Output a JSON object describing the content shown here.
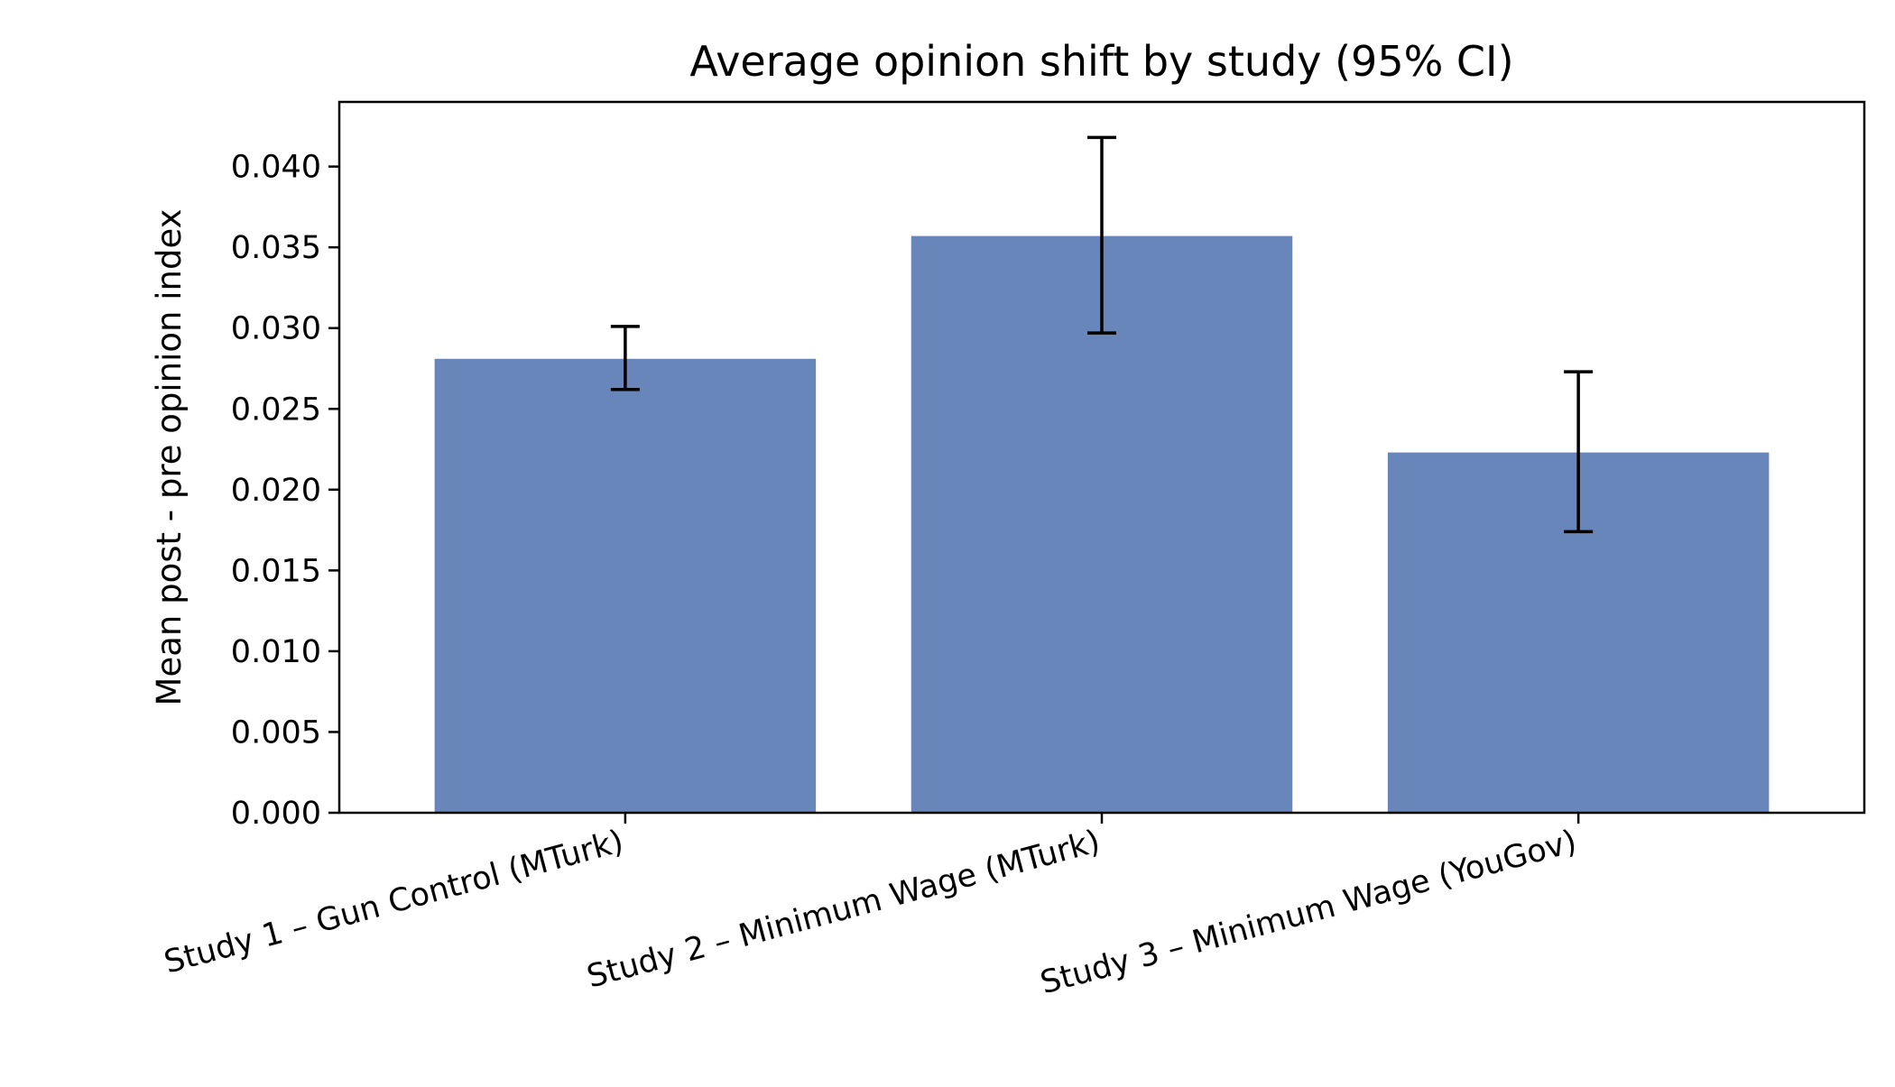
{
  "chart_data": {
    "type": "bar",
    "title": "Average opinion shift by study (95% CI)",
    "xlabel": "",
    "ylabel": "Mean post - pre opinion index",
    "categories": [
      "Study 1 – Gun Control (MTurk)",
      "Study 2 – Minimum Wage (MTurk)",
      "Study 3 – Minimum Wage (YouGov)"
    ],
    "values": [
      0.0281,
      0.0357,
      0.0223
    ],
    "ci_low": [
      0.0262,
      0.0297,
      0.0174
    ],
    "ci_high": [
      0.0301,
      0.0418,
      0.0273
    ],
    "ylim": [
      0.0,
      0.044
    ],
    "yticks": [
      "0.000",
      "0.005",
      "0.010",
      "0.015",
      "0.020",
      "0.025",
      "0.030",
      "0.035",
      "0.040"
    ],
    "bar_color": "#6886b9",
    "errorbar_color": "#000000",
    "reference_line": {
      "y": 0.0,
      "style": "dashed"
    },
    "grid": false,
    "legend": false
  }
}
